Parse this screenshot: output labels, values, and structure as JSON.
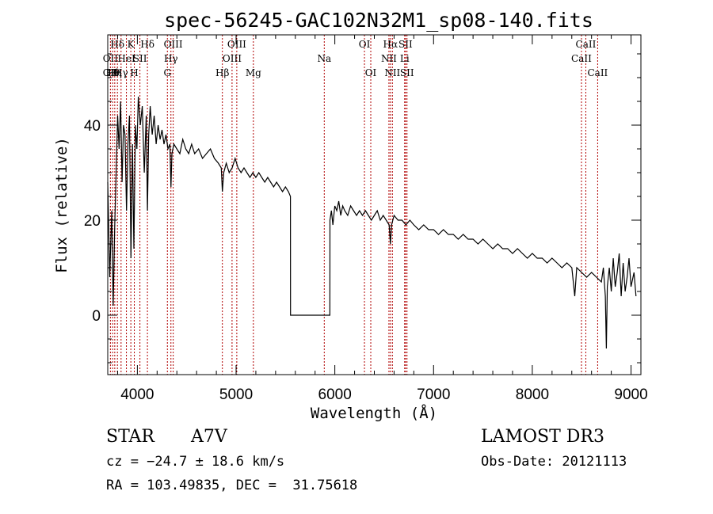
{
  "chart_data": {
    "type": "line",
    "title": "spec-56245-GAC102N32M1_sp08-140.fits",
    "xlabel": "Wavelength (Å)",
    "ylabel": "Flux (relative)",
    "xlim": [
      3700,
      9100
    ],
    "ylim": [
      -12.5,
      59
    ],
    "xticks": [
      4000,
      5000,
      6000,
      7000,
      8000,
      9000
    ],
    "yticks": [
      0,
      20,
      40
    ],
    "series": [
      {
        "name": "spectrum",
        "points": [
          [
            3700,
            28
          ],
          [
            3720,
            8
          ],
          [
            3740,
            22
          ],
          [
            3755,
            2
          ],
          [
            3770,
            18
          ],
          [
            3785,
            30
          ],
          [
            3800,
            42
          ],
          [
            3815,
            35
          ],
          [
            3830,
            45
          ],
          [
            3845,
            28
          ],
          [
            3860,
            40
          ],
          [
            3875,
            38
          ],
          [
            3890,
            22
          ],
          [
            3905,
            36
          ],
          [
            3920,
            42
          ],
          [
            3935,
            12
          ],
          [
            3950,
            36
          ],
          [
            3965,
            14
          ],
          [
            3980,
            40
          ],
          [
            3995,
            35
          ],
          [
            4010,
            46
          ],
          [
            4030,
            40
          ],
          [
            4050,
            44
          ],
          [
            4070,
            30
          ],
          [
            4090,
            42
          ],
          [
            4102,
            22
          ],
          [
            4115,
            38
          ],
          [
            4130,
            44
          ],
          [
            4150,
            38
          ],
          [
            4170,
            42
          ],
          [
            4190,
            36
          ],
          [
            4210,
            40
          ],
          [
            4230,
            37
          ],
          [
            4250,
            39
          ],
          [
            4270,
            36
          ],
          [
            4290,
            38
          ],
          [
            4310,
            35
          ],
          [
            4330,
            36
          ],
          [
            4340,
            27
          ],
          [
            4350,
            34
          ],
          [
            4370,
            36
          ],
          [
            4400,
            35
          ],
          [
            4430,
            34
          ],
          [
            4460,
            37
          ],
          [
            4490,
            35
          ],
          [
            4520,
            34
          ],
          [
            4550,
            36
          ],
          [
            4580,
            34
          ],
          [
            4620,
            35
          ],
          [
            4660,
            33
          ],
          [
            4700,
            34
          ],
          [
            4740,
            35
          ],
          [
            4780,
            33
          ],
          [
            4820,
            32
          ],
          [
            4850,
            31
          ],
          [
            4861,
            26
          ],
          [
            4875,
            30
          ],
          [
            4900,
            32
          ],
          [
            4930,
            30
          ],
          [
            4960,
            31
          ],
          [
            4990,
            33
          ],
          [
            5020,
            31
          ],
          [
            5050,
            30
          ],
          [
            5080,
            31
          ],
          [
            5110,
            30
          ],
          [
            5140,
            29
          ],
          [
            5170,
            30
          ],
          [
            5200,
            29
          ],
          [
            5230,
            30
          ],
          [
            5260,
            29
          ],
          [
            5290,
            28
          ],
          [
            5320,
            29
          ],
          [
            5350,
            28
          ],
          [
            5380,
            27
          ],
          [
            5410,
            28
          ],
          [
            5440,
            27
          ],
          [
            5470,
            26
          ],
          [
            5500,
            27
          ],
          [
            5530,
            26
          ],
          [
            5550,
            25
          ],
          [
            5551,
            0
          ],
          [
            5950,
            0
          ],
          [
            5951,
            20
          ],
          [
            5965,
            22
          ],
          [
            5980,
            19
          ],
          [
            6000,
            23
          ],
          [
            6020,
            22
          ],
          [
            6040,
            24
          ],
          [
            6060,
            21
          ],
          [
            6080,
            23
          ],
          [
            6100,
            22
          ],
          [
            6130,
            21
          ],
          [
            6160,
            23
          ],
          [
            6190,
            22
          ],
          [
            6220,
            21
          ],
          [
            6250,
            22
          ],
          [
            6280,
            21
          ],
          [
            6310,
            22
          ],
          [
            6340,
            21
          ],
          [
            6370,
            20
          ],
          [
            6400,
            21
          ],
          [
            6430,
            22
          ],
          [
            6460,
            20
          ],
          [
            6490,
            21
          ],
          [
            6520,
            20
          ],
          [
            6550,
            19
          ],
          [
            6563,
            15
          ],
          [
            6575,
            19
          ],
          [
            6600,
            21
          ],
          [
            6640,
            20
          ],
          [
            6680,
            20
          ],
          [
            6720,
            19
          ],
          [
            6760,
            20
          ],
          [
            6800,
            19
          ],
          [
            6850,
            18
          ],
          [
            6900,
            19
          ],
          [
            6950,
            18
          ],
          [
            7000,
            18
          ],
          [
            7050,
            17
          ],
          [
            7100,
            18
          ],
          [
            7150,
            17
          ],
          [
            7200,
            17
          ],
          [
            7250,
            16
          ],
          [
            7300,
            17
          ],
          [
            7350,
            16
          ],
          [
            7400,
            16
          ],
          [
            7450,
            15
          ],
          [
            7500,
            16
          ],
          [
            7550,
            15
          ],
          [
            7600,
            14
          ],
          [
            7650,
            15
          ],
          [
            7700,
            14
          ],
          [
            7750,
            14
          ],
          [
            7800,
            13
          ],
          [
            7850,
            14
          ],
          [
            7900,
            13
          ],
          [
            7950,
            12
          ],
          [
            8000,
            13
          ],
          [
            8050,
            12
          ],
          [
            8100,
            12
          ],
          [
            8150,
            11
          ],
          [
            8200,
            12
          ],
          [
            8250,
            11
          ],
          [
            8300,
            10
          ],
          [
            8350,
            11
          ],
          [
            8400,
            10
          ],
          [
            8430,
            4
          ],
          [
            8450,
            10
          ],
          [
            8500,
            9
          ],
          [
            8550,
            8
          ],
          [
            8600,
            9
          ],
          [
            8650,
            8
          ],
          [
            8700,
            7
          ],
          [
            8720,
            10
          ],
          [
            8740,
            4
          ],
          [
            8750,
            -7
          ],
          [
            8760,
            6
          ],
          [
            8780,
            10
          ],
          [
            8800,
            5
          ],
          [
            8820,
            12
          ],
          [
            8840,
            6
          ],
          [
            8860,
            9
          ],
          [
            8880,
            13
          ],
          [
            8900,
            4
          ],
          [
            8920,
            11
          ],
          [
            8940,
            5
          ],
          [
            8960,
            8
          ],
          [
            8980,
            12
          ],
          [
            9000,
            6
          ],
          [
            9030,
            9
          ],
          [
            9050,
            4
          ]
        ]
      }
    ],
    "lines": [
      {
        "wavelength": 3727,
        "labels": [
          "OII",
          "OII"
        ],
        "rows": [
          2,
          3
        ]
      },
      {
        "wavelength": 3750,
        "labels": [
          "Hθ"
        ],
        "rows": [
          3
        ]
      },
      {
        "wavelength": 3771,
        "labels": [
          "Hη"
        ],
        "rows": [
          3
        ]
      },
      {
        "wavelength": 3798,
        "labels": [
          "Hδ"
        ],
        "rows": [
          1
        ]
      },
      {
        "wavelength": 3835,
        "labels": [
          "Hγ"
        ],
        "rows": [
          3
        ]
      },
      {
        "wavelength": 3889,
        "labels": [
          "HeI"
        ],
        "rows": [
          2
        ]
      },
      {
        "wavelength": 3934,
        "labels": [
          "K"
        ],
        "rows": [
          1
        ]
      },
      {
        "wavelength": 3969,
        "labels": [
          "H"
        ],
        "rows": [
          3
        ]
      },
      {
        "wavelength": 4026,
        "labels": [
          "SII"
        ],
        "rows": [
          2
        ]
      },
      {
        "wavelength": 4102,
        "labels": [
          "Hδ"
        ],
        "rows": [
          1
        ]
      },
      {
        "wavelength": 4304,
        "labels": [
          "G"
        ],
        "rows": [
          3
        ]
      },
      {
        "wavelength": 4340,
        "labels": [
          "Hγ"
        ],
        "rows": [
          2
        ]
      },
      {
        "wavelength": 4363,
        "labels": [
          "OIII"
        ],
        "rows": [
          1
        ]
      },
      {
        "wavelength": 4861,
        "labels": [
          "Hβ"
        ],
        "rows": [
          3
        ]
      },
      {
        "wavelength": 4959,
        "labels": [
          "OIII"
        ],
        "rows": [
          2
        ]
      },
      {
        "wavelength": 5007,
        "labels": [
          "OIII"
        ],
        "rows": [
          1
        ]
      },
      {
        "wavelength": 5175,
        "labels": [
          "Mg"
        ],
        "rows": [
          3
        ]
      },
      {
        "wavelength": 5893,
        "labels": [
          "Na"
        ],
        "rows": [
          2
        ]
      },
      {
        "wavelength": 6300,
        "labels": [
          "OI"
        ],
        "rows": [
          1
        ]
      },
      {
        "wavelength": 6364,
        "labels": [
          "OI"
        ],
        "rows": [
          3
        ]
      },
      {
        "wavelength": 6548,
        "labels": [
          "NII"
        ],
        "rows": [
          2
        ]
      },
      {
        "wavelength": 6563,
        "labels": [
          "Hα"
        ],
        "rows": [
          1
        ]
      },
      {
        "wavelength": 6583,
        "labels": [
          "NII"
        ],
        "rows": [
          3
        ]
      },
      {
        "wavelength": 6707,
        "labels": [
          "Li"
        ],
        "rows": [
          2
        ]
      },
      {
        "wavelength": 6716,
        "labels": [
          "SII"
        ],
        "rows": [
          1
        ]
      },
      {
        "wavelength": 6731,
        "labels": [
          "SII"
        ],
        "rows": [
          3
        ]
      },
      {
        "wavelength": 8498,
        "labels": [
          "CaII"
        ],
        "rows": [
          2
        ]
      },
      {
        "wavelength": 8542,
        "labels": [
          "CaII"
        ],
        "rows": [
          1
        ]
      },
      {
        "wavelength": 8662,
        "labels": [
          "CaII"
        ],
        "rows": [
          3
        ]
      }
    ]
  },
  "info": {
    "object_class": "STAR",
    "subclass": "A7V",
    "survey": "LAMOST DR3",
    "cz": "cz = −24.7 ± 18.6 km/s",
    "obs_date": "Obs-Date: 20121113",
    "radec": "RA = 103.49835, DEC =  31.75618"
  },
  "colors": {
    "line_marker": "#b00000",
    "spectrum": "#000000"
  }
}
